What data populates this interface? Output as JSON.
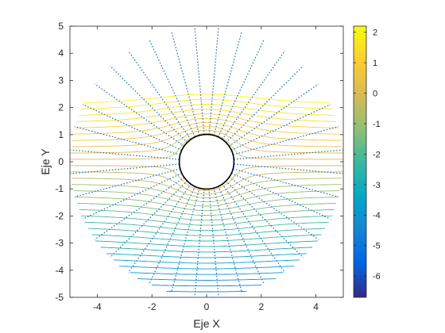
{
  "chart_data": {
    "type": "contour",
    "title": "",
    "xlabel": "Eje X",
    "ylabel": "Eje Y",
    "xlim": [
      -5,
      5
    ],
    "ylim": [
      -5,
      5
    ],
    "xticks": [
      -4,
      -2,
      0,
      2,
      4
    ],
    "yticks": [
      -5,
      -4,
      -3,
      -2,
      -1,
      0,
      1,
      2,
      3,
      4,
      5
    ],
    "grid": false,
    "domain": {
      "shape": "annulus",
      "inner_radius": 1,
      "outer_radius": 5
    },
    "obstacle": {
      "shape": "circle",
      "center": [
        0,
        0
      ],
      "radius": 1
    },
    "solid_contours": {
      "description": "level curves of the potential",
      "count": 40
    },
    "dotted_lines": {
      "description": "field lines radiating from the obstacle",
      "count": 36
    },
    "colorbar": {
      "position": "right",
      "colormap": "parula",
      "limits": [
        -6.7,
        2.2
      ],
      "ticks": [
        2,
        1,
        0,
        -1,
        -2,
        -3,
        -4,
        -5,
        -6
      ]
    }
  }
}
